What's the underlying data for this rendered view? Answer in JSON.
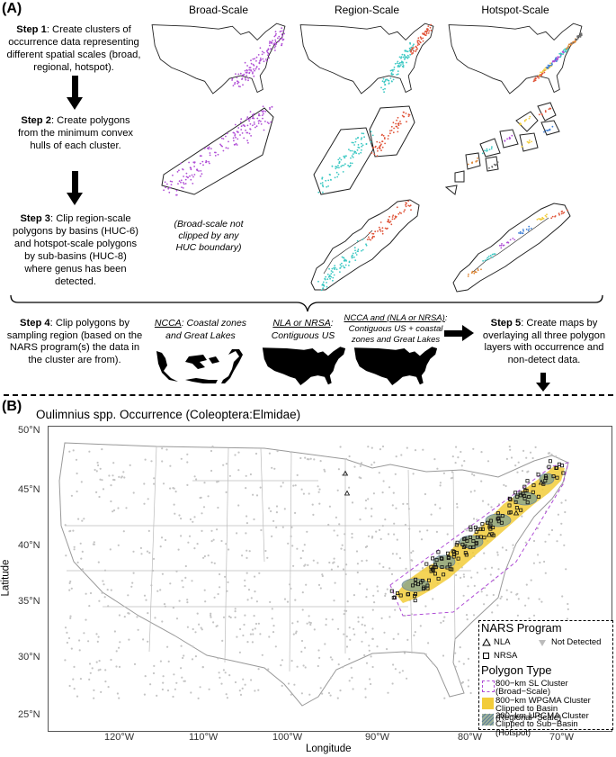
{
  "panel_a": {
    "letter": "(A)",
    "columns": [
      "Broad-Scale",
      "Region-Scale",
      "Hotspot-Scale"
    ],
    "step1": {
      "label": "Step 1",
      "text": ": Create clusters of occurrence data representing different spatial scales (broad, regional, hotspot)."
    },
    "step2": {
      "label": "Step 2",
      "text": ": Create polygons from the minimum convex hulls of each cluster."
    },
    "step3": {
      "label": "Step 3",
      "text": ": Clip region-scale polygons by basins (HUC-6) and hotspot-scale polygons by sub-basins (HUC-8) where genus has been detected."
    },
    "broad_note": "(Broad-scale not clipped by any HUC boundary)",
    "step4": {
      "label": "Step 4",
      "text": ": Clip polygons by sampling region (based on the NARS program(s) the data in the cluster are from)."
    },
    "region_ncca": {
      "name": "NCCA",
      "desc": ": Coastal zones and Great Lakes"
    },
    "region_nla": {
      "name": "NLA or NRSA",
      "desc": ": Contiguous US"
    },
    "region_both": {
      "name": "NCCA and (NLA or NRSA)",
      "desc": ": Contiguous US + coastal zones and Great Lakes"
    },
    "step5": {
      "label": "Step 5",
      "text": ": Create maps by overlaying all three polygon layers with occurrence and non-detect data."
    }
  },
  "panel_b": {
    "letter": "(B)",
    "title": "Oulimnius spp. Occurrence (Coleoptera:Elmidae)",
    "xlabel": "Longitude",
    "ylabel": "Latitude",
    "yticks": [
      "50°N",
      "45°N",
      "40°N",
      "35°N",
      "30°N",
      "25°N"
    ],
    "xticks": [
      "120°W",
      "110°W",
      "100°W",
      "90°W",
      "80°W",
      "70°W"
    ],
    "legend": {
      "title_program": "NARS Program",
      "nla": "NLA",
      "nrsa": "NRSA",
      "not_detected": "Not Detected",
      "title_polygon": "Polygon Type",
      "poly1_a": "800−km SL Cluster",
      "poly1_b": "(Broad−Scale)",
      "poly2_a": "800−km WPGMA Cluster",
      "poly2_b": "Clipped to Basin (Regional−Scale)",
      "poly3_a": "200−km UPGMA Cluster",
      "poly3_b": "Clipped to Sub−Basin (Hotspot)"
    }
  },
  "colors": {
    "broad": "#b04fd6",
    "region_a": "#3ec9c4",
    "region_b": "#e0553a",
    "polygon_fill": "#f2cc3a",
    "hotspot_fill": "#8fa88a",
    "not_detected": "#c4c4c4"
  }
}
